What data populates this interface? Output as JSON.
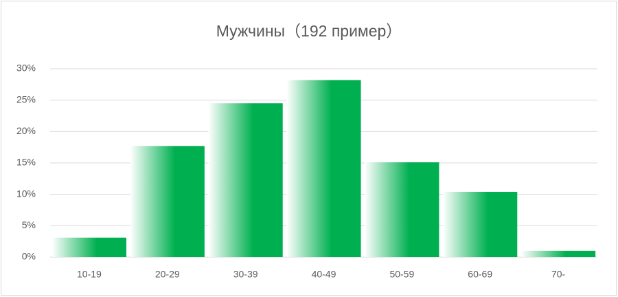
{
  "chart_data": {
    "type": "bar",
    "title": "Мужчины（192 пример）",
    "categories": [
      "10-19",
      "20-29",
      "30-39",
      "40-49",
      "50-59",
      "60-69",
      "70-"
    ],
    "values": [
      3.1,
      17.7,
      24.5,
      28.2,
      15.1,
      10.4,
      1.0
    ],
    "color": "#00b050",
    "ylim": [
      0,
      30
    ],
    "yticks": [
      {
        "value": 0,
        "label": "0%"
      },
      {
        "value": 5,
        "label": "5%"
      },
      {
        "value": 10,
        "label": "10%"
      },
      {
        "value": 15,
        "label": "15%"
      },
      {
        "value": 20,
        "label": "20%"
      },
      {
        "value": 25,
        "label": "25%"
      },
      {
        "value": 30,
        "label": "30%"
      }
    ],
    "grid": true
  }
}
